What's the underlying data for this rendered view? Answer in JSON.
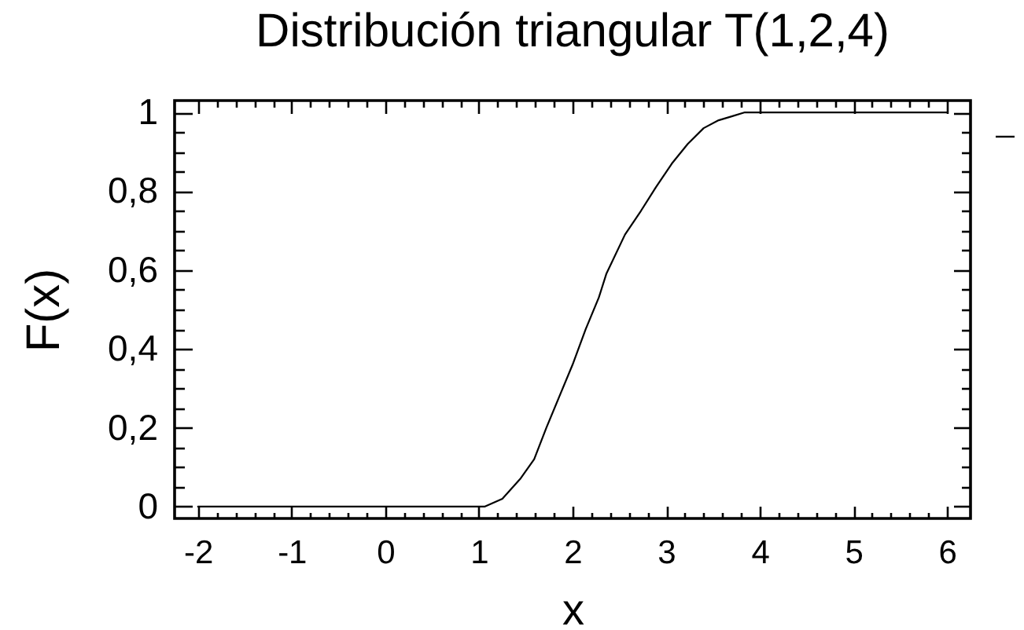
{
  "chart_data": {
    "type": "line",
    "title": "Distribución triangular T(1,2,4)",
    "xlabel": "x",
    "ylabel": "F(x)",
    "x": [
      -2,
      1.06,
      1.25,
      1.44,
      1.59,
      1.72,
      1.86,
      2,
      2.14,
      2.28,
      2.36,
      2.56,
      2.73,
      2.89,
      3.06,
      3.23,
      3.4,
      3.56,
      3.7,
      3.84,
      6
    ],
    "series": [
      {
        "color": "#000000",
        "values": [
          0,
          0,
          0.02,
          0.07,
          0.12,
          0.2,
          0.28,
          0.36,
          0.45,
          0.53,
          0.59,
          0.69,
          0.75,
          0.81,
          0.87,
          0.92,
          0.96,
          0.98,
          0.99,
          1,
          1
        ]
      }
    ],
    "xlim": [
      -2.25,
      6.25
    ],
    "ylim": [
      -0.03,
      1.03
    ],
    "xticks": [
      -2,
      {
        "value": -1.8,
        "label": null
      },
      {
        "value": -1.6,
        "label": null
      },
      {
        "value": -1.4,
        "label": null
      },
      {
        "value": -1.2,
        "label": null
      },
      -1,
      {
        "value": -0.8,
        "label": null
      },
      {
        "value": -0.6,
        "label": null
      },
      {
        "value": -0.4,
        "label": null
      },
      {
        "value": -0.2,
        "label": null
      },
      0,
      {
        "value": 0.2,
        "label": null
      },
      {
        "value": 0.4,
        "label": null
      },
      {
        "value": 0.6,
        "label": null
      },
      {
        "value": 0.8,
        "label": null
      },
      1,
      {
        "value": 1.2,
        "label": null
      },
      {
        "value": 1.4,
        "label": null
      },
      {
        "value": 1.6,
        "label": null
      },
      {
        "value": 1.8,
        "label": null
      },
      2,
      {
        "value": 2.2,
        "label": null
      },
      {
        "value": 2.4,
        "label": null
      },
      {
        "value": 2.6,
        "label": null
      },
      {
        "value": 2.8,
        "label": null
      },
      3,
      {
        "value": 3.2,
        "label": null
      },
      {
        "value": 3.4,
        "label": null
      },
      {
        "value": 3.6,
        "label": null
      },
      {
        "value": 3.8,
        "label": null
      },
      4,
      {
        "value": 4.2,
        "label": null
      },
      {
        "value": 4.4,
        "label": null
      },
      {
        "value": 4.6,
        "label": null
      },
      {
        "value": 4.8,
        "label": null
      },
      5,
      {
        "value": 5.2,
        "label": null
      },
      {
        "value": 5.4,
        "label": null
      },
      {
        "value": 5.6,
        "label": null
      },
      {
        "value": 5.8,
        "label": null
      },
      6
    ],
    "yticks": [
      0,
      {
        "value": 0.05,
        "label": null
      },
      {
        "value": 0.1,
        "label": null
      },
      {
        "value": 0.15,
        "label": null
      },
      {
        "value": 0.2,
        "label": "0,2"
      },
      {
        "value": 0.25,
        "label": null
      },
      {
        "value": 0.3,
        "label": null
      },
      {
        "value": 0.35,
        "label": null
      },
      {
        "value": 0.4,
        "label": "0,4"
      },
      {
        "value": 0.45,
        "label": null
      },
      {
        "value": 0.5,
        "label": null
      },
      {
        "value": 0.55,
        "label": null
      },
      {
        "value": 0.6,
        "label": "0,6"
      },
      {
        "value": 0.65,
        "label": null
      },
      {
        "value": 0.7,
        "label": null
      },
      {
        "value": 0.75,
        "label": null
      },
      {
        "value": 0.8,
        "label": "0,8"
      },
      {
        "value": 0.85,
        "label": null
      },
      {
        "value": 0.9,
        "label": null
      },
      {
        "value": 0.95,
        "label": null
      },
      1
    ],
    "line_style": "solid"
  }
}
